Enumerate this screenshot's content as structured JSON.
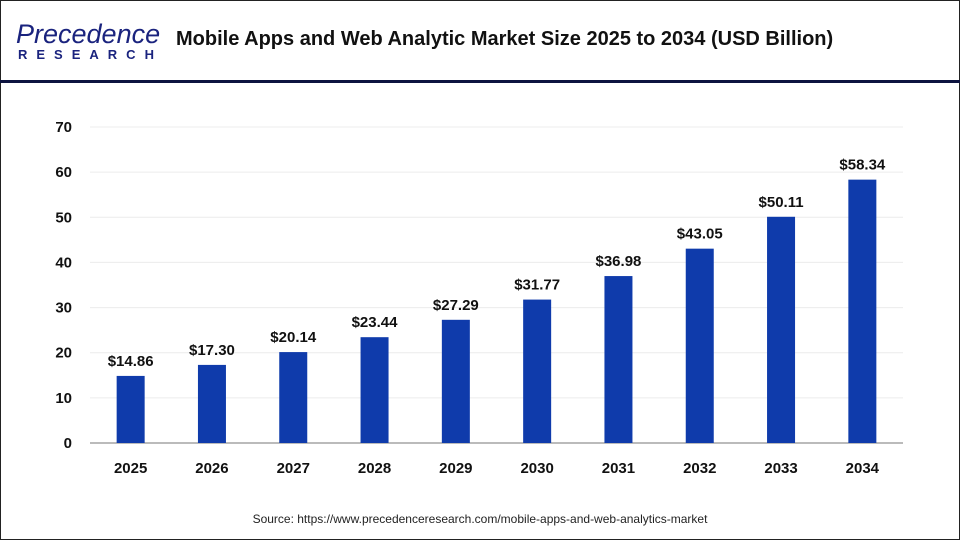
{
  "logo": {
    "top": "Precedence",
    "bottom": "RESEARCH"
  },
  "title": "Mobile Apps and Web Analytic Market Size 2025 to 2034  (USD Billion)",
  "source": "Source: https://www.precedenceresearch.com/mobile-apps-and-web-analytics-market",
  "chart_data": {
    "type": "bar",
    "title": "Mobile Apps and Web Analytic Market Size 2025 to 2034  (USD Billion)",
    "categories": [
      "2025",
      "2026",
      "2027",
      "2028",
      "2029",
      "2030",
      "2031",
      "2032",
      "2033",
      "2034"
    ],
    "values": [
      14.86,
      17.3,
      20.14,
      23.44,
      27.29,
      31.77,
      36.98,
      43.05,
      50.11,
      58.34
    ],
    "data_labels": [
      "$14.86",
      "$17.30",
      "$20.14",
      "$23.44",
      "$27.29",
      "$31.77",
      "$36.98",
      "$43.05",
      "$50.11",
      "$58.34"
    ],
    "ylim": [
      0,
      70
    ],
    "yticks": [
      0,
      10,
      20,
      30,
      40,
      50,
      60,
      70
    ],
    "grid": true,
    "bar_color": "#0f3bab",
    "xlabel": "",
    "ylabel": ""
  }
}
